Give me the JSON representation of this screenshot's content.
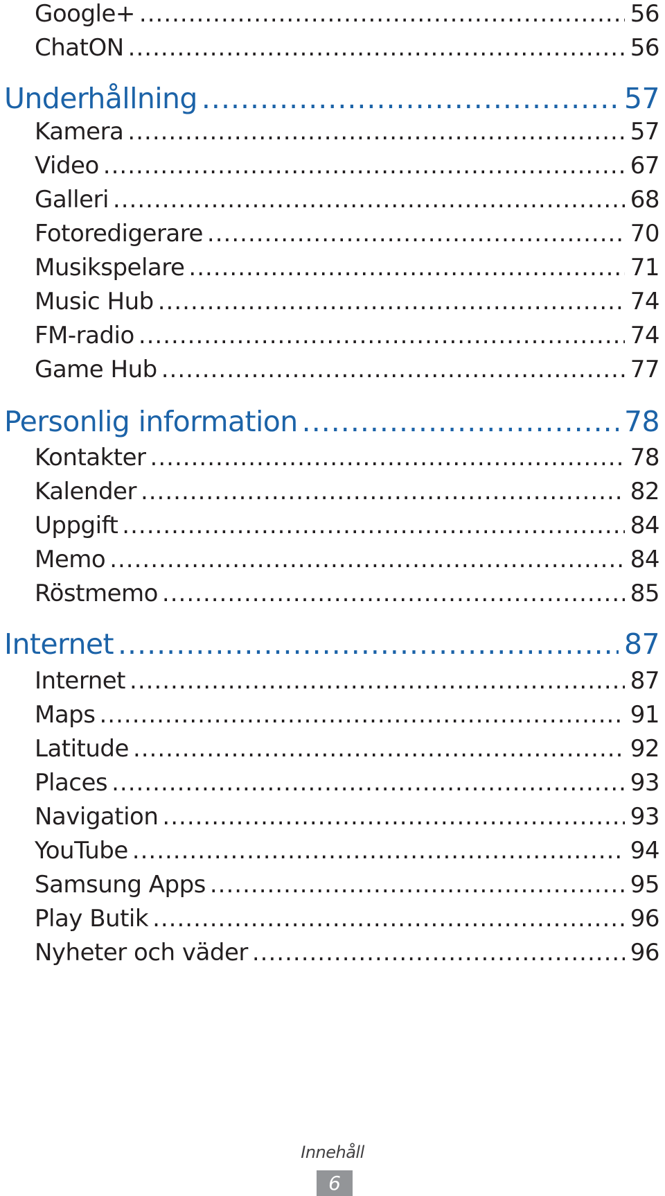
{
  "toc": {
    "entries": [
      {
        "level": "item",
        "label": "Google+",
        "page": "56"
      },
      {
        "level": "item",
        "label": "ChatON",
        "page": "56"
      },
      {
        "level": "section",
        "label": "Underhållning",
        "page": "57"
      },
      {
        "level": "item",
        "label": "Kamera",
        "page": "57"
      },
      {
        "level": "item",
        "label": "Video",
        "page": "67"
      },
      {
        "level": "item",
        "label": "Galleri",
        "page": "68"
      },
      {
        "level": "item",
        "label": "Fotoredigerare",
        "page": "70"
      },
      {
        "level": "item",
        "label": "Musikspelare",
        "page": "71"
      },
      {
        "level": "item",
        "label": "Music Hub",
        "page": "74"
      },
      {
        "level": "item",
        "label": "FM-radio",
        "page": "74"
      },
      {
        "level": "item",
        "label": "Game Hub",
        "page": "77"
      },
      {
        "level": "section",
        "label": "Personlig information",
        "page": "78"
      },
      {
        "level": "item",
        "label": "Kontakter",
        "page": "78"
      },
      {
        "level": "item",
        "label": "Kalender",
        "page": "82"
      },
      {
        "level": "item",
        "label": "Uppgift",
        "page": "84"
      },
      {
        "level": "item",
        "label": "Memo",
        "page": "84"
      },
      {
        "level": "item",
        "label": "Röstmemo",
        "page": "85"
      },
      {
        "level": "section",
        "label": "Internet",
        "page": "87"
      },
      {
        "level": "item",
        "label": "Internet",
        "page": "87"
      },
      {
        "level": "item",
        "label": "Maps",
        "page": "91"
      },
      {
        "level": "item",
        "label": "Latitude",
        "page": "92"
      },
      {
        "level": "item",
        "label": "Places",
        "page": "93"
      },
      {
        "level": "item",
        "label": "Navigation",
        "page": "93"
      },
      {
        "level": "item",
        "label": "YouTube",
        "page": "94"
      },
      {
        "level": "item",
        "label": "Samsung Apps",
        "page": "95"
      },
      {
        "level": "item",
        "label": "Play Butik",
        "page": "96"
      },
      {
        "level": "item",
        "label": "Nyheter och väder",
        "page": "96"
      }
    ]
  },
  "footer": {
    "section_label": "Innehåll",
    "page_number": "6"
  },
  "colors": {
    "section_heading": "#1c63a8",
    "item_text": "#231f20",
    "page_badge": "#939598"
  }
}
